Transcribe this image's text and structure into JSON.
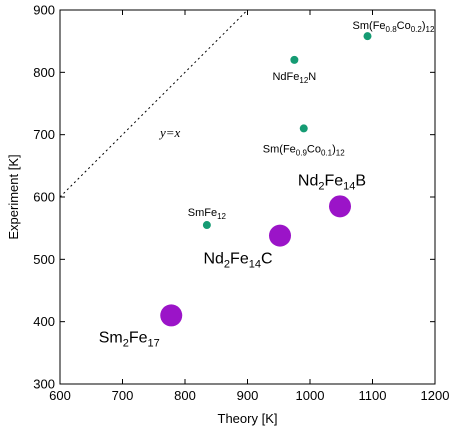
{
  "chart_data": {
    "type": "scatter",
    "xlabel": "Theory [K]",
    "ylabel": "Experiment [K]",
    "xlim": [
      600,
      1200
    ],
    "ylim": [
      300,
      900
    ],
    "xticks": [
      "600",
      "700",
      "800",
      "900",
      "1000",
      "1100",
      "1200"
    ],
    "yticks": [
      "300",
      "400",
      "500",
      "600",
      "700",
      "800",
      "900"
    ],
    "grid": false,
    "reference_line": {
      "label": "y=x",
      "style": "dotted",
      "color": "#000000"
    },
    "series": [
      {
        "marker": "small",
        "color": "#159b73",
        "points": [
          {
            "label": "Sm(Fe0.8Co0.2)12",
            "x": 1092,
            "y": 858
          },
          {
            "label": "NdFe12N",
            "x": 975,
            "y": 820
          },
          {
            "label": "Sm(Fe0.9Co0.1)12",
            "x": 990,
            "y": 710
          },
          {
            "label": "SmFe12",
            "x": 835,
            "y": 555
          }
        ]
      },
      {
        "marker": "large",
        "color": "#9b14c8",
        "points": [
          {
            "label": "Nd2Fe14B",
            "x": 1048,
            "y": 585
          },
          {
            "label": "Nd2Fe14C",
            "x": 952,
            "y": 538
          },
          {
            "label": "Sm2Fe17",
            "x": 778,
            "y": 410
          }
        ]
      }
    ]
  }
}
